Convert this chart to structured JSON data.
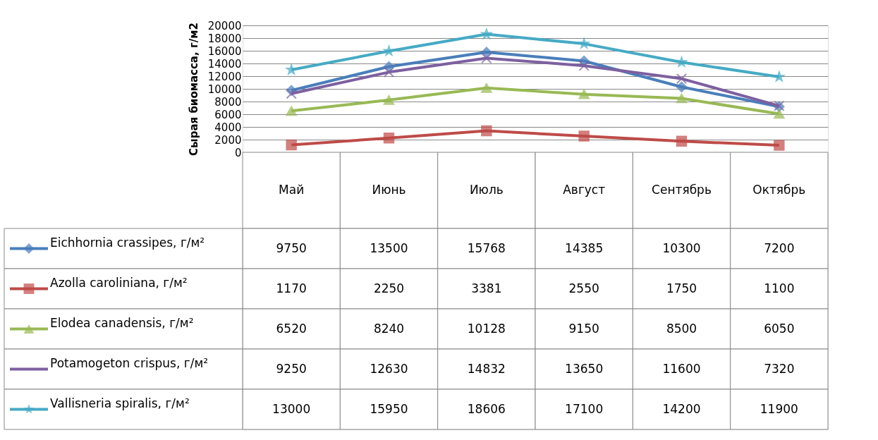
{
  "chart_data": {
    "type": "line",
    "ylabel": "Сырая биомасса, г/м2",
    "categories": [
      "Май",
      "Июнь",
      "Июль",
      "Август",
      "Сентябрь",
      "Октябрь"
    ],
    "series": [
      {
        "name": "Eichhornia crassipes, г/м²",
        "color": "#4a7ebb",
        "marker": "diamond",
        "values": [
          9750,
          13500,
          15768,
          14385,
          10300,
          7200
        ]
      },
      {
        "name": "Azolla caroliniana,  г/м²",
        "color": "#be4b48",
        "marker": "square",
        "values": [
          1170,
          2250,
          3381,
          2550,
          1750,
          1100
        ]
      },
      {
        "name": "Elodea canadensis, г/м²",
        "color": "#98b954",
        "marker": "triangle",
        "values": [
          6520,
          8240,
          10128,
          9150,
          8500,
          6050
        ]
      },
      {
        "name": "Potamogeton crispus, г/м²",
        "color": "#7d60a0",
        "marker": "cross",
        "values": [
          9250,
          12630,
          14832,
          13650,
          11600,
          7320
        ]
      },
      {
        "name": "Vallisneria spiralis, г/м²",
        "color": "#46aac5",
        "marker": "star",
        "values": [
          13000,
          15950,
          18606,
          17100,
          14200,
          11900
        ]
      }
    ],
    "ylim": [
      0,
      20000
    ],
    "yticks": [
      0,
      2000,
      4000,
      6000,
      8000,
      10000,
      12000,
      14000,
      16000,
      18000,
      20000
    ],
    "grid": "y",
    "legend": "bottom left",
    "data_labels": true
  }
}
